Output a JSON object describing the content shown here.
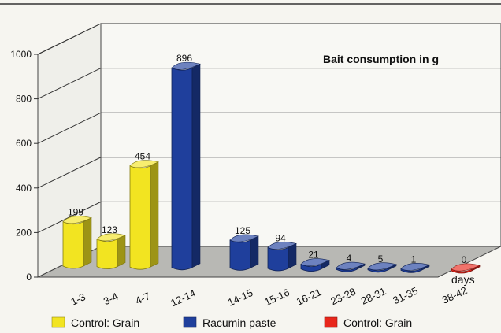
{
  "chart_data": {
    "type": "bar",
    "title": "Bait consumption in g",
    "xlabel": "days",
    "ylabel": "",
    "ylim": [
      0,
      1000
    ],
    "yticks": [
      0,
      200,
      400,
      600,
      800,
      1000
    ],
    "grid": true,
    "legend_position": "bottom",
    "categories": [
      "1-3",
      "3-4",
      "4-7",
      "12-14",
      "14-15",
      "15-16",
      "16-21",
      "23-28",
      "28-31",
      "31-35",
      "38-42"
    ],
    "series": [
      {
        "name": "Control: Grain",
        "color": "#f2e421",
        "values": [
          199,
          123,
          454,
          null,
          null,
          null,
          null,
          null,
          null,
          null,
          null
        ]
      },
      {
        "name": "Racumin paste",
        "color": "#1f3f9c",
        "values": [
          null,
          null,
          null,
          896,
          125,
          94,
          21,
          4,
          5,
          1,
          null
        ]
      },
      {
        "name": "Control: Grain",
        "color": "#e8261b",
        "values": [
          null,
          null,
          null,
          null,
          null,
          null,
          null,
          null,
          null,
          null,
          0
        ]
      }
    ],
    "data_labels": [
      "199",
      "123",
      "454",
      "896",
      "125",
      "94",
      "21",
      "4",
      "5",
      "1",
      "0"
    ]
  }
}
